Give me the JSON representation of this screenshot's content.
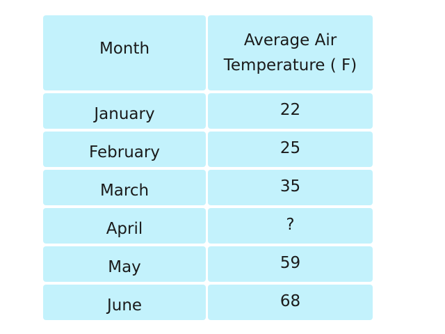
{
  "table": {
    "headers": {
      "month": "Month",
      "temp_line1": "Average Air",
      "temp_line2": "Temperature ( F)"
    },
    "rows": [
      {
        "month": "January",
        "temp": "22"
      },
      {
        "month": "February",
        "temp": "25"
      },
      {
        "month": "March",
        "temp": "35"
      },
      {
        "month": "April",
        "temp": "?"
      },
      {
        "month": "May",
        "temp": "59"
      },
      {
        "month": "June",
        "temp": "68"
      }
    ]
  },
  "colors": {
    "cell_background": "#c3f2fc",
    "text": "#1a1a1a"
  }
}
